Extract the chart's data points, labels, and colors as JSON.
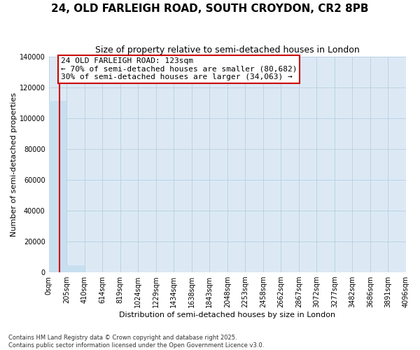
{
  "title": "24, OLD FARLEIGH ROAD, SOUTH CROYDON, CR2 8PB",
  "subtitle": "Size of property relative to semi-detached houses in London",
  "xlabel": "Distribution of semi-detached houses by size in London",
  "ylabel": "Number of semi-detached properties",
  "property_size": 123,
  "property_label": "24 OLD FARLEIGH ROAD: 123sqm",
  "annotation_line1": "← 70% of semi-detached houses are smaller (80,682)",
  "annotation_line2": "30% of semi-detached houses are larger (34,063) →",
  "bar_color": "#c8dff0",
  "line_color": "#cc0000",
  "annotation_box_color": "#cc0000",
  "background_color": "#ffffff",
  "plot_bg_color": "#dce9f5",
  "ylim": [
    0,
    140000
  ],
  "yticks": [
    0,
    20000,
    40000,
    60000,
    80000,
    100000,
    120000,
    140000
  ],
  "bin_edges": [
    0,
    205,
    410,
    614,
    819,
    1024,
    1229,
    1434,
    1638,
    1843,
    2048,
    2253,
    2458,
    2662,
    2867,
    3072,
    3277,
    3482,
    3686,
    3891,
    4096
  ],
  "bin_labels": [
    "0sqm",
    "205sqm",
    "410sqm",
    "614sqm",
    "819sqm",
    "1024sqm",
    "1229sqm",
    "1434sqm",
    "1638sqm",
    "1843sqm",
    "2048sqm",
    "2253sqm",
    "2458sqm",
    "2662sqm",
    "2867sqm",
    "3072sqm",
    "3277sqm",
    "3482sqm",
    "3686sqm",
    "3891sqm",
    "4096sqm"
  ],
  "bar_heights": [
    111000,
    4500,
    0,
    0,
    0,
    0,
    0,
    0,
    0,
    0,
    0,
    0,
    0,
    0,
    0,
    0,
    0,
    0,
    0,
    0
  ],
  "footer_line1": "Contains HM Land Registry data © Crown copyright and database right 2025.",
  "footer_line2": "Contains public sector information licensed under the Open Government Licence v3.0.",
  "grid_color": "#b8cfe0",
  "title_fontsize": 11,
  "subtitle_fontsize": 9,
  "ylabel_fontsize": 8,
  "xlabel_fontsize": 8,
  "tick_fontsize": 7,
  "annotation_fontsize": 8,
  "footer_fontsize": 6
}
